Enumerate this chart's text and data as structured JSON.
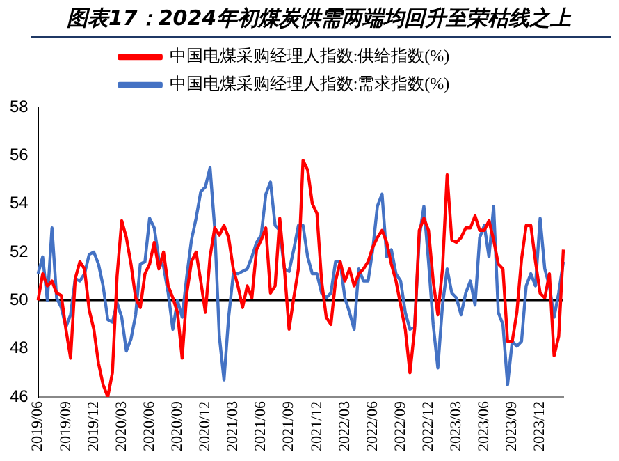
{
  "chart_data": {
    "type": "line",
    "title": "图表17：2024年初煤炭供需两端均回升至荣枯线之上",
    "categories": [
      "2019/06",
      null,
      null,
      null,
      null,
      null,
      "2019/09",
      null,
      null,
      null,
      null,
      null,
      "2019/12",
      null,
      null,
      null,
      null,
      null,
      "2020/03",
      null,
      null,
      null,
      null,
      null,
      "2020/06",
      null,
      null,
      null,
      null,
      null,
      "2020/09",
      null,
      null,
      null,
      null,
      null,
      "2020/12",
      null,
      null,
      null,
      null,
      null,
      "2021/03",
      null,
      null,
      null,
      null,
      null,
      "2021/06",
      null,
      null,
      null,
      null,
      null,
      "2021/09",
      null,
      null,
      null,
      null,
      null,
      "2021/12",
      null,
      null,
      null,
      null,
      null,
      "2022/03",
      null,
      null,
      null,
      null,
      null,
      "2022/06",
      null,
      null,
      null,
      null,
      null,
      "2022/09",
      null,
      null,
      null,
      null,
      null,
      "2022/12",
      null,
      null,
      null,
      null,
      null,
      "2023/03",
      null,
      null,
      null,
      null,
      null,
      "2023/06",
      null,
      null,
      null,
      null,
      null,
      "2023/09",
      null,
      null,
      null,
      null,
      null,
      "2023/12",
      null,
      null,
      null,
      null,
      null
    ],
    "series": [
      {
        "name": "中国电煤采购经理人指数:供给指数(%)",
        "color": "#ff0000",
        "values": [
          50.0,
          51.1,
          50.6,
          50.8,
          50.3,
          50.2,
          48.8,
          47.6,
          50.9,
          51.6,
          51.3,
          49.6,
          48.8,
          47.4,
          46.5,
          46.0,
          47.0,
          51.0,
          53.3,
          52.6,
          51.5,
          50.1,
          49.7,
          51.1,
          51.5,
          52.4,
          51.3,
          52.0,
          50.6,
          50.1,
          49.5,
          47.6,
          50.3,
          51.6,
          52.0,
          50.8,
          49.5,
          51.8,
          53.0,
          52.7,
          53.1,
          52.6,
          51.3,
          50.6,
          49.7,
          50.6,
          50.1,
          52.1,
          52.5,
          53.0,
          50.3,
          50.6,
          53.4,
          51.3,
          48.8,
          50.1,
          51.3,
          55.8,
          55.4,
          54.0,
          53.6,
          50.8,
          49.3,
          49.0,
          50.8,
          51.6,
          50.8,
          51.3,
          50.6,
          51.1,
          51.3,
          51.6,
          52.2,
          52.6,
          52.9,
          52.4,
          51.5,
          50.8,
          49.8,
          48.8,
          47.0,
          48.8,
          52.9,
          53.4,
          52.9,
          50.8,
          49.4,
          51.3,
          55.2,
          52.5,
          52.4,
          52.6,
          53.0,
          53.0,
          53.5,
          52.9,
          52.9,
          53.3,
          52.5,
          51.5,
          51.3,
          48.3,
          48.3,
          49.5,
          51.7,
          53.1,
          53.1,
          51.6,
          50.3,
          50.1,
          51.1,
          47.7,
          48.5,
          52.1
        ]
      },
      {
        "name": "中国电煤采购经理人指数:需求指数(%)",
        "color": "#4472c4",
        "values": [
          51.1,
          51.8,
          50.0,
          53.0,
          50.1,
          49.7,
          48.9,
          49.4,
          50.9,
          50.8,
          51.1,
          51.9,
          52.0,
          51.5,
          50.6,
          49.2,
          49.1,
          49.9,
          49.3,
          47.9,
          48.4,
          49.4,
          51.5,
          51.6,
          53.4,
          53.0,
          51.7,
          51.4,
          50.3,
          48.8,
          50.0,
          49.3,
          51.0,
          52.5,
          53.4,
          54.5,
          54.7,
          55.5,
          53.0,
          48.5,
          46.7,
          49.3,
          51.1,
          51.1,
          51.2,
          51.3,
          51.8,
          52.4,
          52.7,
          54.4,
          54.9,
          53.1,
          52.9,
          51.3,
          51.2,
          52.1,
          53.1,
          53.1,
          51.8,
          51.1,
          51.1,
          50.3,
          50.1,
          50.3,
          51.6,
          51.6,
          50.1,
          49.5,
          48.8,
          51.3,
          50.8,
          50.8,
          52.1,
          53.9,
          54.4,
          51.8,
          52.1,
          51.1,
          50.8,
          49.5,
          48.8,
          48.9,
          52.6,
          53.9,
          51.6,
          49.0,
          47.2,
          49.8,
          51.3,
          50.3,
          50.1,
          49.4,
          50.3,
          50.8,
          49.8,
          52.6,
          53.1,
          51.8,
          53.9,
          49.5,
          49.0,
          46.5,
          48.3,
          48.1,
          48.3,
          50.6,
          51.1,
          50.6,
          53.4,
          51.3,
          50.6,
          49.3,
          50.3,
          51.6
        ]
      }
    ],
    "ylim": [
      46,
      58
    ],
    "yticks": [
      46,
      48,
      50,
      52,
      54,
      56,
      58
    ],
    "ref_lines": [
      {
        "axis": "y",
        "value": 50,
        "color": "#000000"
      }
    ],
    "grid": false,
    "legend": "top",
    "marker": "none",
    "line_style": "solid"
  }
}
